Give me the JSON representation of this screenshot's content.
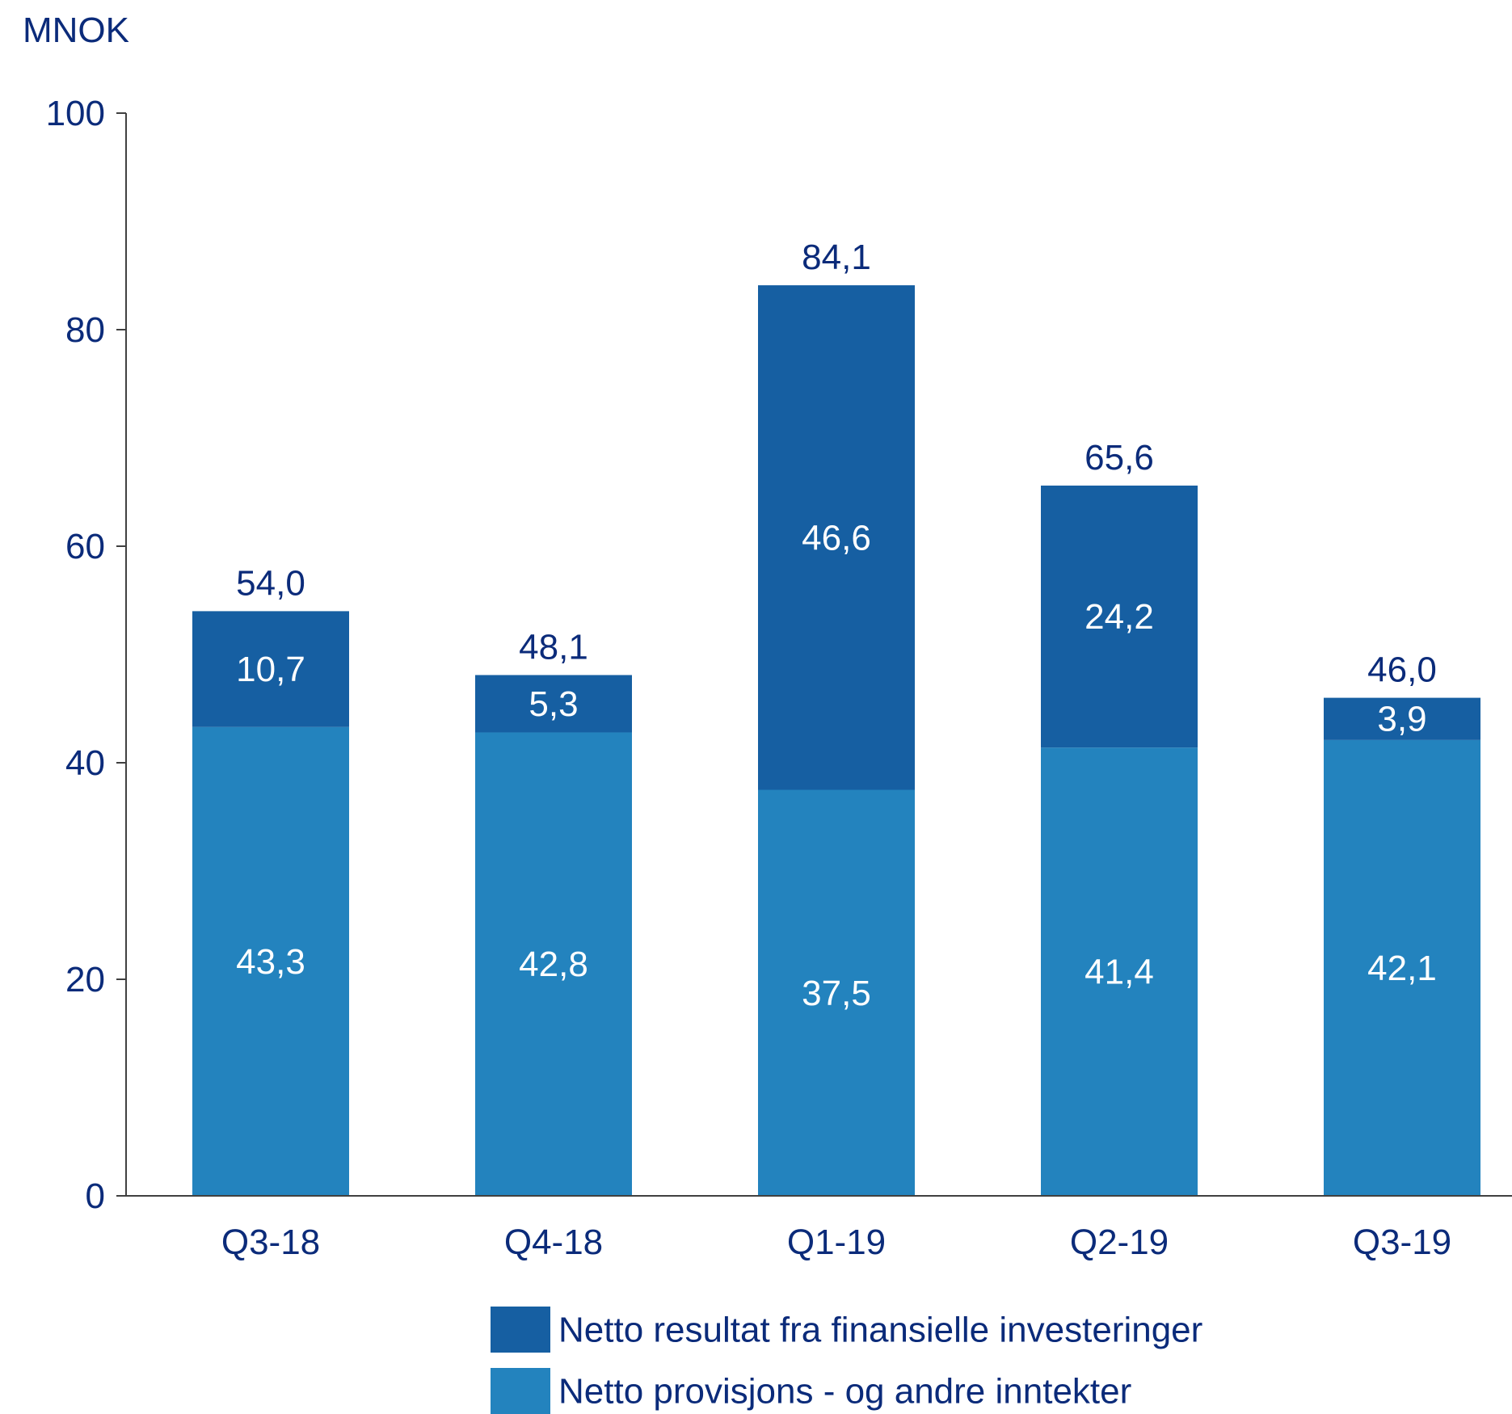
{
  "chart_data": {
    "type": "bar",
    "stacked": true,
    "ylabel": "MNOK",
    "ylim": [
      0,
      100
    ],
    "yticks": [
      "0",
      "20",
      "40",
      "60",
      "80",
      "100"
    ],
    "categories": [
      "Q3-18",
      "Q4-18",
      "Q1-19",
      "Q2-19",
      "Q3-19"
    ],
    "series": [
      {
        "name": "Netto provisjons - og andre inntekter",
        "color": "#2383BE",
        "values": [
          43.3,
          42.8,
          37.5,
          41.4,
          42.1
        ],
        "labels": [
          "43,3",
          "42,8",
          "37,5",
          "41,4",
          "42,1"
        ]
      },
      {
        "name": "Netto resultat fra finansielle investeringer",
        "color": "#165FA2",
        "values": [
          10.7,
          5.3,
          46.6,
          24.2,
          3.9
        ],
        "labels": [
          "10,7",
          "5,3",
          "46,6",
          "24,2",
          "3,9"
        ]
      }
    ],
    "totals": [
      54.0,
      48.1,
      84.1,
      65.6,
      46.0
    ],
    "total_labels": [
      "54,0",
      "48,1",
      "84,1",
      "65,6",
      "46,0"
    ],
    "legend_order": [
      1,
      0
    ],
    "legend_position": "bottom",
    "grid": false,
    "text_color": "#0B2B7A",
    "segment_label_color": "#FFFFFF",
    "axis_color": "#404040"
  }
}
